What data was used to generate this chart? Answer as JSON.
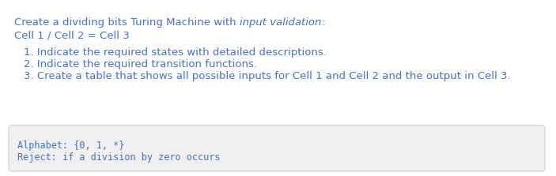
{
  "bg_color": "#ffffff",
  "title_line1_normal": "Create a dividing bits Turing Machine with ",
  "title_line1_italic": "input validation",
  "title_line1_end": ":",
  "title_line2": "Cell 1 / Cell 2 = Cell 3",
  "item1": "1. Indicate the required states with detailed descriptions.",
  "item2": "2. Indicate the required transition functions.",
  "item3": "3. Create a table that shows all possible inputs for Cell 1 and Cell 2 and the output in Cell 3.",
  "box_line1": "Alphabet: {0, 1, *}",
  "box_line2": "Reject: if a division by zero occurs",
  "text_color": "#4472c4",
  "box_bg": "#f0f0f0",
  "box_border": "#cccccc",
  "title_fontsize": 9.5,
  "item_fontsize": 9.5,
  "mono_fontsize": 8.5,
  "fig_width": 7.03,
  "fig_height": 2.23,
  "dpi": 100
}
